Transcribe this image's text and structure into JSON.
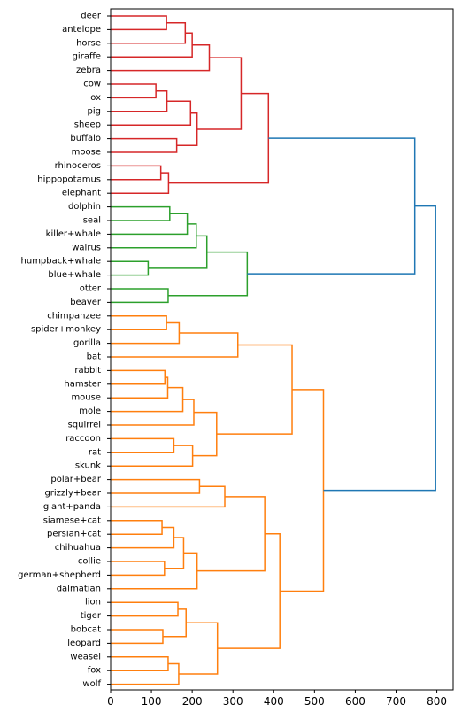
{
  "chart_data": {
    "type": "dendrogram",
    "orientation": "horizontal",
    "title": "",
    "xlabel": "",
    "ylabel": "",
    "xlim": [
      0,
      840
    ],
    "x_ticks": [
      {
        "value": 0,
        "label": "0"
      },
      {
        "value": 100,
        "label": "100"
      },
      {
        "value": 200,
        "label": "200"
      },
      {
        "value": 300,
        "label": "300"
      },
      {
        "value": 400,
        "label": "400"
      },
      {
        "value": 500,
        "label": "500"
      },
      {
        "value": 600,
        "label": "600"
      },
      {
        "value": 700,
        "label": "700"
      },
      {
        "value": 800,
        "label": "800"
      }
    ],
    "leaves": [
      "deer",
      "antelope",
      "horse",
      "giraffe",
      "zebra",
      "cow",
      "ox",
      "pig",
      "sheep",
      "buffalo",
      "moose",
      "rhinoceros",
      "hippopotamus",
      "elephant",
      "dolphin",
      "seal",
      "killer+whale",
      "walrus",
      "humpback+whale",
      "blue+whale",
      "otter",
      "beaver",
      "chimpanzee",
      "spider+monkey",
      "gorilla",
      "bat",
      "rabbit",
      "hamster",
      "mouse",
      "mole",
      "squirrel",
      "raccoon",
      "rat",
      "skunk",
      "polar+bear",
      "grizzly+bear",
      "giant+panda",
      "siamese+cat",
      "persian+cat",
      "chihuahua",
      "collie",
      "german+shepherd",
      "dalmatian",
      "lion",
      "tiger",
      "bobcat",
      "leopard",
      "weasel",
      "fox",
      "wolf"
    ],
    "colors": {
      "red": "#d62728",
      "green": "#2ca02c",
      "orange": "#ff7f0e",
      "blue": "#1f77b4"
    },
    "merges": [
      {
        "id": "m1",
        "left": "deer",
        "right": "antelope",
        "height": 137,
        "color": "red"
      },
      {
        "id": "m2",
        "left": "m1",
        "right": "horse",
        "height": 183,
        "color": "red"
      },
      {
        "id": "m3",
        "left": "m2",
        "right": "giraffe",
        "height": 200,
        "color": "red"
      },
      {
        "id": "m4",
        "left": "m3",
        "right": "zebra",
        "height": 242,
        "color": "red"
      },
      {
        "id": "m5",
        "left": "cow",
        "right": "ox",
        "height": 111,
        "color": "red"
      },
      {
        "id": "m6",
        "left": "m5",
        "right": "pig",
        "height": 138,
        "color": "red"
      },
      {
        "id": "m7",
        "left": "m6",
        "right": "sheep",
        "height": 196,
        "color": "red"
      },
      {
        "id": "m8",
        "left": "buffalo",
        "right": "moose",
        "height": 162,
        "color": "red"
      },
      {
        "id": "m9",
        "left": "m7",
        "right": "m8",
        "height": 212,
        "color": "red"
      },
      {
        "id": "m10",
        "left": "m4",
        "right": "m9",
        "height": 320,
        "color": "red"
      },
      {
        "id": "m11",
        "left": "rhinoceros",
        "right": "hippopotamus",
        "height": 123,
        "color": "red"
      },
      {
        "id": "m12",
        "left": "m11",
        "right": "elephant",
        "height": 142,
        "color": "red"
      },
      {
        "id": "m13",
        "left": "m10",
        "right": "m12",
        "height": 387,
        "color": "red"
      },
      {
        "id": "m14",
        "left": "dolphin",
        "right": "seal",
        "height": 145,
        "color": "green"
      },
      {
        "id": "m15",
        "left": "m14",
        "right": "killer+whale",
        "height": 188,
        "color": "green"
      },
      {
        "id": "m16",
        "left": "m15",
        "right": "walrus",
        "height": 210,
        "color": "green"
      },
      {
        "id": "m17",
        "left": "humpback+whale",
        "right": "blue+whale",
        "height": 92,
        "color": "green"
      },
      {
        "id": "m18",
        "left": "m16",
        "right": "m17",
        "height": 236,
        "color": "green"
      },
      {
        "id": "m19",
        "left": "otter",
        "right": "beaver",
        "height": 141,
        "color": "green"
      },
      {
        "id": "m20",
        "left": "m18",
        "right": "m19",
        "height": 335,
        "color": "green"
      },
      {
        "id": "m21",
        "left": "m13",
        "right": "m20",
        "height": 746,
        "color": "blue"
      },
      {
        "id": "m22",
        "left": "chimpanzee",
        "right": "spider+monkey",
        "height": 137,
        "color": "orange"
      },
      {
        "id": "m23",
        "left": "m22",
        "right": "gorilla",
        "height": 168,
        "color": "orange"
      },
      {
        "id": "m24",
        "left": "m23",
        "right": "bat",
        "height": 312,
        "color": "orange"
      },
      {
        "id": "m25",
        "left": "rabbit",
        "right": "hamster",
        "height": 133,
        "color": "orange"
      },
      {
        "id": "m26",
        "left": "m25",
        "right": "mouse",
        "height": 140,
        "color": "orange"
      },
      {
        "id": "m27",
        "left": "m26",
        "right": "mole",
        "height": 177,
        "color": "orange"
      },
      {
        "id": "m28",
        "left": "m27",
        "right": "squirrel",
        "height": 204,
        "color": "orange"
      },
      {
        "id": "m29",
        "left": "raccoon",
        "right": "rat",
        "height": 155,
        "color": "orange"
      },
      {
        "id": "m30",
        "left": "m29",
        "right": "skunk",
        "height": 201,
        "color": "orange"
      },
      {
        "id": "m31",
        "left": "m28",
        "right": "m30",
        "height": 260,
        "color": "orange"
      },
      {
        "id": "m32",
        "left": "m24",
        "right": "m31",
        "height": 445,
        "color": "orange"
      },
      {
        "id": "m33",
        "left": "polar+bear",
        "right": "grizzly+bear",
        "height": 218,
        "color": "orange"
      },
      {
        "id": "m34",
        "left": "m33",
        "right": "giant+panda",
        "height": 280,
        "color": "orange"
      },
      {
        "id": "m35",
        "left": "siamese+cat",
        "right": "persian+cat",
        "height": 126,
        "color": "orange"
      },
      {
        "id": "m36",
        "left": "m35",
        "right": "chihuahua",
        "height": 155,
        "color": "orange"
      },
      {
        "id": "m37",
        "left": "collie",
        "right": "german+shepherd",
        "height": 132,
        "color": "orange"
      },
      {
        "id": "m38",
        "left": "m36",
        "right": "m37",
        "height": 179,
        "color": "orange"
      },
      {
        "id": "m39",
        "left": "m38",
        "right": "dalmatian",
        "height": 212,
        "color": "orange"
      },
      {
        "id": "m40",
        "left": "m34",
        "right": "m39",
        "height": 378,
        "color": "orange"
      },
      {
        "id": "m41",
        "left": "lion",
        "right": "tiger",
        "height": 165,
        "color": "orange"
      },
      {
        "id": "m42",
        "left": "bobcat",
        "right": "leopard",
        "height": 128,
        "color": "orange"
      },
      {
        "id": "m43",
        "left": "m41",
        "right": "m42",
        "height": 185,
        "color": "orange"
      },
      {
        "id": "m44",
        "left": "weasel",
        "right": "fox",
        "height": 141,
        "color": "orange"
      },
      {
        "id": "m45",
        "left": "m44",
        "right": "wolf",
        "height": 167,
        "color": "orange"
      },
      {
        "id": "m46",
        "left": "m43",
        "right": "m45",
        "height": 262,
        "color": "orange"
      },
      {
        "id": "m47",
        "left": "m40",
        "right": "m46",
        "height": 415,
        "color": "orange"
      },
      {
        "id": "m48",
        "left": "m32",
        "right": "m47",
        "height": 522,
        "color": "orange"
      },
      {
        "id": "m49",
        "left": "m21",
        "right": "m48",
        "height": 797,
        "color": "blue"
      }
    ]
  }
}
